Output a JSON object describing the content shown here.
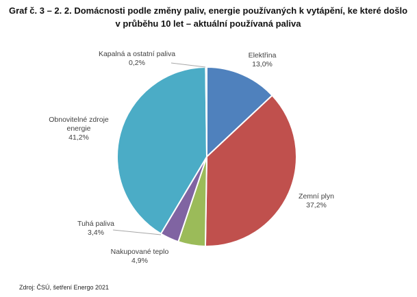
{
  "title": {
    "line1": "Graf č. 3 – 2. 2. Domácnosti podle změny paliv, energie používaných k vytápění, ke které došlo",
    "line2": "v průběhu 10 let – aktuální používaná paliva"
  },
  "source": "Zdroj: ČSÚ, šetření Energo 2021",
  "chart_data": {
    "type": "pie",
    "start_angle_deg": 0,
    "direction": "clockwise",
    "slices": [
      {
        "name": "Elektřina",
        "value": 13.0,
        "value_label": "13,0%",
        "color": "#4F81BD"
      },
      {
        "name": "Zemní plyn",
        "value": 37.2,
        "value_label": "37,2%",
        "color": "#C0504D"
      },
      {
        "name": "Nakupované teplo",
        "value": 4.9,
        "value_label": "4,9%",
        "color": "#9BBB59"
      },
      {
        "name": "Tuhá paliva",
        "value": 3.4,
        "value_label": "3,4%",
        "color": "#8064A2"
      },
      {
        "name": "Obnovitelné zdroje energie",
        "name_lines": [
          "Obnovitelné zdroje",
          "energie"
        ],
        "value": 41.2,
        "value_label": "41,2%",
        "color": "#4BACC6"
      },
      {
        "name": "Kapalná a ostatní paliva",
        "value": 0.2,
        "value_label": "0,2%",
        "color": "#F79646"
      }
    ]
  }
}
